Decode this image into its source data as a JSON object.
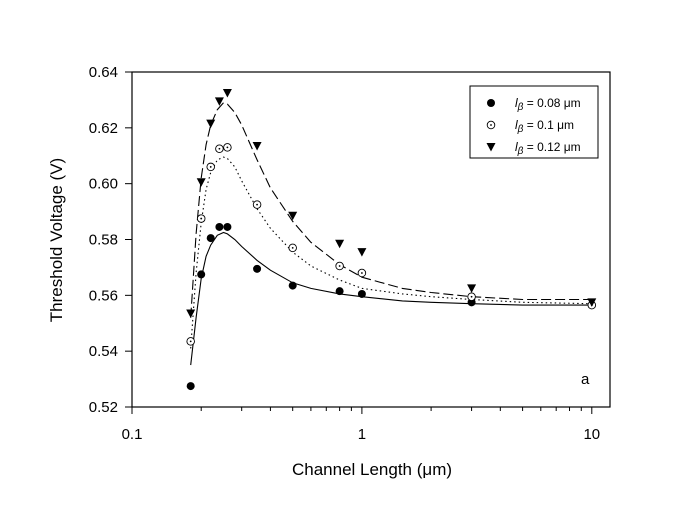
{
  "chart_data": {
    "type": "scatter",
    "xlabel": "Channel Length (μm)",
    "ylabel": "Threshold Voltage (V)",
    "xscale": "log",
    "xlim": [
      0.1,
      12
    ],
    "ylim": [
      0.52,
      0.64
    ],
    "x_ticks": [
      0.1,
      1,
      10
    ],
    "x_tick_labels": [
      "0.1",
      "1",
      "10"
    ],
    "y_ticks": [
      0.52,
      0.54,
      0.56,
      0.58,
      0.6,
      0.62,
      0.64
    ],
    "y_tick_labels": [
      "0.52",
      "0.54",
      "0.56",
      "0.58",
      "0.60",
      "0.62",
      "0.64"
    ],
    "grid": false,
    "legend_position": "top-right",
    "annotation": "a",
    "series": [
      {
        "name": "lβ = 0.08 μm",
        "legend_prefix": "l",
        "legend_sub": "β",
        "legend_suffix": " = 0.08 μm",
        "marker": "filled-circle",
        "line_style": "solid",
        "x": [
          0.18,
          0.2,
          0.22,
          0.24,
          0.26,
          0.35,
          0.5,
          0.8,
          1.0,
          3.0,
          10.0
        ],
        "y": [
          0.5275,
          0.5675,
          0.5805,
          0.5845,
          0.5845,
          0.5695,
          0.5635,
          0.5615,
          0.5605,
          0.5575,
          0.5565
        ],
        "fit_x": [
          0.18,
          0.19,
          0.2,
          0.21,
          0.22,
          0.235,
          0.25,
          0.26,
          0.28,
          0.3,
          0.35,
          0.4,
          0.5,
          0.6,
          0.8,
          1.0,
          1.5,
          2.0,
          3.0,
          5.0,
          10.0
        ],
        "fit_y": [
          0.535,
          0.552,
          0.566,
          0.574,
          0.578,
          0.5815,
          0.5825,
          0.582,
          0.58,
          0.5775,
          0.5725,
          0.569,
          0.5645,
          0.5625,
          0.5605,
          0.5595,
          0.558,
          0.5575,
          0.557,
          0.5565,
          0.5565
        ]
      },
      {
        "name": "lβ = 0.1 μm",
        "legend_prefix": "l",
        "legend_sub": "β",
        "legend_suffix": " = 0.1 μm",
        "marker": "open-circle-dot",
        "line_style": "dotted",
        "x": [
          0.18,
          0.2,
          0.22,
          0.24,
          0.26,
          0.35,
          0.5,
          0.8,
          1.0,
          3.0,
          10.0
        ],
        "y": [
          0.5435,
          0.5875,
          0.606,
          0.6125,
          0.613,
          0.5925,
          0.577,
          0.5705,
          0.568,
          0.5595,
          0.5565
        ],
        "fit_x": [
          0.18,
          0.19,
          0.2,
          0.21,
          0.22,
          0.235,
          0.25,
          0.26,
          0.28,
          0.3,
          0.35,
          0.4,
          0.5,
          0.6,
          0.8,
          1.0,
          1.5,
          2.0,
          3.0,
          5.0,
          10.0
        ],
        "fit_y": [
          0.541,
          0.568,
          0.586,
          0.598,
          0.604,
          0.6085,
          0.6095,
          0.609,
          0.606,
          0.601,
          0.591,
          0.584,
          0.5755,
          0.5705,
          0.5655,
          0.5625,
          0.5605,
          0.5595,
          0.5585,
          0.5575,
          0.557
        ]
      },
      {
        "name": "lβ = 0.12 μm",
        "legend_prefix": "l",
        "legend_sub": "β",
        "legend_suffix": " = 0.12 μm",
        "marker": "filled-triangle-down",
        "line_style": "dashed",
        "x": [
          0.18,
          0.2,
          0.22,
          0.24,
          0.26,
          0.35,
          0.5,
          0.8,
          1.0,
          3.0,
          10.0
        ],
        "y": [
          0.5535,
          0.6005,
          0.6215,
          0.6295,
          0.6325,
          0.6135,
          0.5885,
          0.5785,
          0.5755,
          0.5625,
          0.5575
        ],
        "fit_x": [
          0.18,
          0.19,
          0.2,
          0.21,
          0.22,
          0.235,
          0.25,
          0.26,
          0.28,
          0.3,
          0.35,
          0.4,
          0.5,
          0.6,
          0.8,
          1.0,
          1.5,
          2.0,
          3.0,
          5.0,
          10.0
        ],
        "fit_y": [
          0.552,
          0.582,
          0.602,
          0.614,
          0.621,
          0.6265,
          0.629,
          0.6285,
          0.6255,
          0.621,
          0.6085,
          0.5985,
          0.5865,
          0.579,
          0.571,
          0.5665,
          0.5625,
          0.561,
          0.5595,
          0.5585,
          0.5585
        ]
      }
    ]
  }
}
